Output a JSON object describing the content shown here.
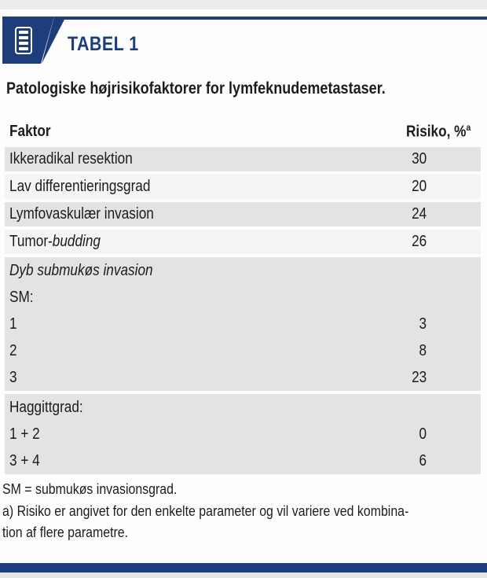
{
  "banner": {
    "title": "TABEL 1",
    "icon": "table-list-icon"
  },
  "caption": "Patologiske højrisikofaktorer for lymfeknudemetastaser.",
  "table": {
    "col_factor": "Faktor",
    "col_risk": "Risiko, %",
    "col_risk_sup": "a",
    "rows": [
      {
        "segments": [
          {
            "text": "Ikkeradikal resektion",
            "italic": false
          }
        ],
        "value": "30",
        "shade": "dark",
        "merged": false,
        "block": false
      },
      {
        "segments": [
          {
            "text": "Lav differentieringsgrad",
            "italic": false
          }
        ],
        "value": "20",
        "shade": "light",
        "merged": false,
        "block": false
      },
      {
        "segments": [
          {
            "text": "Lymfovaskulær invasion",
            "italic": false
          }
        ],
        "value": "24",
        "shade": "dark",
        "merged": false,
        "block": false
      },
      {
        "segments": [
          {
            "text": "Tumor-",
            "italic": false
          },
          {
            "text": "budding",
            "italic": true
          }
        ],
        "value": "26",
        "shade": "light",
        "merged": false,
        "block": false
      },
      {
        "segments": [
          {
            "text": "Dyb submukøs invasion",
            "italic": true
          }
        ],
        "value": "",
        "shade": "dark",
        "merged": false,
        "block": true
      },
      {
        "segments": [
          {
            "text": "SM:",
            "italic": false
          }
        ],
        "value": "",
        "shade": "dark",
        "merged": true,
        "block": true
      },
      {
        "segments": [
          {
            "text": "1",
            "italic": false
          }
        ],
        "value": "3",
        "shade": "dark",
        "merged": true,
        "block": true
      },
      {
        "segments": [
          {
            "text": "2",
            "italic": false
          }
        ],
        "value": "8",
        "shade": "dark",
        "merged": true,
        "block": true
      },
      {
        "segments": [
          {
            "text": "3",
            "italic": false
          }
        ],
        "value": "23",
        "shade": "dark",
        "merged": true,
        "block": true
      },
      {
        "segments": [
          {
            "text": "Haggittgrad:",
            "italic": false
          }
        ],
        "value": "",
        "shade": "dark",
        "merged": false,
        "block": true
      },
      {
        "segments": [
          {
            "text": "1 + 2",
            "italic": false
          }
        ],
        "value": "0",
        "shade": "dark",
        "merged": true,
        "block": true
      },
      {
        "segments": [
          {
            "text": "3 + 4",
            "italic": false
          }
        ],
        "value": "6",
        "shade": "dark",
        "merged": true,
        "block": true
      }
    ]
  },
  "footnotes": [
    "SM = submukøs invasionsgrad.",
    "a) Risiko er angivet for den enkelte parameter og vil variere ved kombina-",
    "tion af flere parametre."
  ],
  "colors": {
    "navy": "#1e3d7c",
    "row_dark": "#e3e3e3",
    "row_light": "#f4f4f4"
  }
}
